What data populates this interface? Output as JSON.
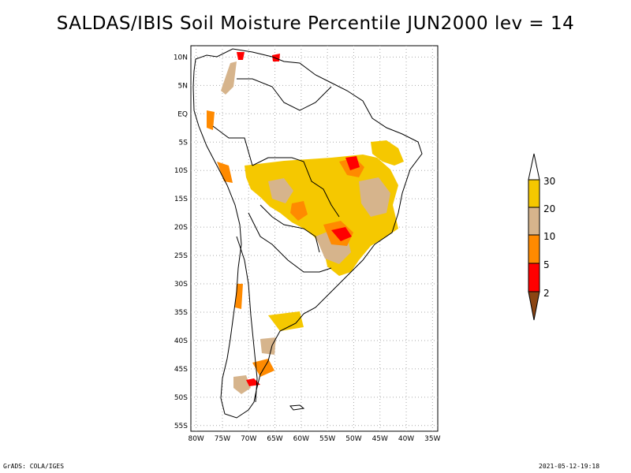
{
  "title": "SALDAS/IBIS Soil Moisture Percentile JUN2000 lev = 14",
  "footer": {
    "left": "GrADS: COLA/IGES",
    "right": "2021-05-12-19:18"
  },
  "map": {
    "lat_labels": [
      "10N",
      "5N",
      "EQ",
      "5S",
      "10S",
      "15S",
      "20S",
      "25S",
      "30S",
      "35S",
      "40S",
      "45S",
      "50S",
      "55S"
    ],
    "lat_values": [
      10,
      5,
      0,
      -5,
      -10,
      -15,
      -20,
      -25,
      -30,
      -35,
      -40,
      -45,
      -50,
      -55
    ],
    "lon_labels": [
      "80W",
      "75W",
      "70W",
      "65W",
      "60W",
      "55W",
      "50W",
      "45W",
      "40W",
      "35W"
    ],
    "lon_values": [
      -80,
      -75,
      -70,
      -65,
      -60,
      -55,
      -50,
      -45,
      -40,
      -35
    ],
    "extent": {
      "lon": [
        -81,
        -34
      ],
      "lat": [
        -56,
        12
      ]
    },
    "grid": true
  },
  "legend": {
    "thresholds": [
      "30",
      "20",
      "10",
      "5",
      "2"
    ],
    "colors": {
      "above_30": "#ffffff",
      "20_30": "#f5c800",
      "10_20": "#d6b48c",
      "5_10": "#ff8a00",
      "2_5": "#ff0000",
      "below_2": "#8b4513"
    }
  }
}
